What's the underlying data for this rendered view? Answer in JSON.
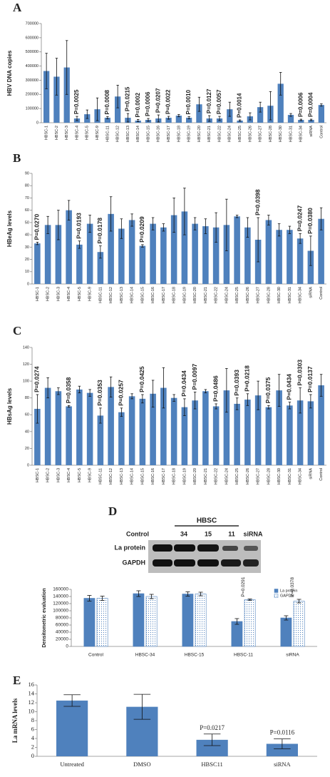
{
  "chart_data": [
    {
      "type": "bar",
      "panel": "A",
      "ylabel": "HBV DNA copies",
      "color": "#4f81bd",
      "grid": false,
      "categories": [
        "HBSC-1",
        "HBSC-2",
        "HBSC-3",
        "HBSC-4",
        "HBSC-5",
        "HBSC-9",
        "HBSC-11",
        "HBSC-12",
        "HBSC-13",
        "HBSC-14",
        "HBSC-15",
        "HBSC-16",
        "HBSC-17",
        "HBSC-18",
        "HBSC-19",
        "HBSC-20",
        "HBSC-21",
        "HBSC-22",
        "HBSC-24",
        "HBSC-25",
        "HBSC-26",
        "HBSC-27",
        "HBSC-28",
        "HBSC-30",
        "HBSC-31",
        "HBSC-34",
        "siRNA",
        "Control"
      ],
      "values": [
        365000,
        325000,
        390000,
        30000,
        60000,
        95000,
        35000,
        185000,
        35000,
        15000,
        20000,
        30000,
        35000,
        50000,
        35000,
        130000,
        30000,
        30000,
        95000,
        15000,
        45000,
        110000,
        120000,
        275000,
        55000,
        20000,
        20000,
        125000
      ],
      "errors": [
        125000,
        130000,
        190000,
        15000,
        30000,
        80000,
        8000,
        80000,
        30000,
        8000,
        10000,
        25000,
        10000,
        8000,
        8000,
        50000,
        20000,
        15000,
        50000,
        5000,
        25000,
        35000,
        100000,
        80000,
        10000,
        5000,
        5000,
        8000
      ],
      "annotations": [
        null,
        null,
        null,
        "P=0.0025",
        null,
        null,
        "P=0.0008",
        null,
        "P=0.0215",
        "P=0.0002",
        "P=0.0006",
        "P=0.0207",
        "P=0.0022",
        null,
        "P=0.0010",
        null,
        "P=0.0127",
        "P=0.0057",
        null,
        "P=0.0014",
        null,
        null,
        null,
        null,
        null,
        "P=0.0006",
        "P=0.0004",
        null
      ],
      "ylim": [
        0,
        700000
      ],
      "yticks": [
        0,
        100000,
        200000,
        300000,
        400000,
        500000,
        600000,
        700000
      ]
    },
    {
      "type": "bar",
      "panel": "B",
      "ylabel": "HBeAg levels",
      "color": "#4f81bd",
      "grid": false,
      "categories": [
        "HBSC-1",
        "HBSC-2",
        "HBSC-3",
        "HBSC-4",
        "HBSC-5",
        "HBSC-9",
        "HBSC-11",
        "HBSC-12",
        "HBSC-13",
        "HBSC-14",
        "HBSC-15",
        "HBSC-16",
        "HBSC-17",
        "HBSC-18",
        "HBSC-19",
        "HBSC-20",
        "HBSC-21",
        "HBSC-22",
        "HBSC-24",
        "HBSC-25",
        "HBSC-26",
        "HBSC-27",
        "HBSC-28",
        "HBSC-30",
        "HBSC-31",
        "HBSC-34",
        "siRNA",
        "Control"
      ],
      "values": [
        33,
        48,
        48,
        60,
        32,
        49,
        26,
        57,
        45,
        52,
        31,
        49,
        46,
        56,
        59,
        49,
        47,
        46,
        48,
        55,
        46,
        36,
        52,
        44,
        44,
        37,
        27,
        53
      ],
      "errors": [
        1,
        7,
        12,
        8,
        3,
        7,
        5,
        14,
        8,
        5,
        1,
        5,
        3,
        14,
        19,
        5,
        6,
        12,
        21,
        1,
        8,
        18,
        4,
        5,
        3,
        4,
        12,
        9
      ],
      "annotations": [
        "P=0.0270",
        null,
        null,
        null,
        "P=0.0193",
        null,
        "P=0.0178",
        null,
        null,
        null,
        "P=0.0209",
        null,
        null,
        null,
        null,
        null,
        null,
        null,
        null,
        null,
        null,
        "P=0.0398",
        null,
        null,
        null,
        "P=0.0247",
        "P=0.0380",
        null
      ],
      "ylim": [
        0,
        90
      ],
      "yticks": [
        0,
        10,
        20,
        30,
        40,
        50,
        60,
        70,
        80,
        90
      ]
    },
    {
      "type": "bar",
      "panel": "C",
      "ylabel": "HBsAg levels",
      "color": "#4f81bd",
      "grid": false,
      "categories": [
        "HBSC-1",
        "HBSC-2",
        "HBSC-3",
        "HBSC-4",
        "HBSC-5",
        "HBSC-9",
        "HBSC-11",
        "HBSC-12",
        "HBSC-13",
        "HBSC-14",
        "HBSC-15",
        "HBSC-16",
        "HBSC-17",
        "HBSC-18",
        "HBSC-19",
        "HBSC-20",
        "HBSC-21",
        "HBSC-22",
        "HBSC-24",
        "HBSC-25",
        "HBSC-26",
        "HBSC-27",
        "HBSC-28",
        "HBSC-30",
        "HBSC-31",
        "HBSC-34",
        "siRNA",
        "Control"
      ],
      "values": [
        67,
        92,
        88,
        70,
        90,
        86,
        59,
        93,
        63,
        82,
        79,
        85,
        92,
        80,
        69,
        77,
        88,
        70,
        89,
        73,
        78,
        83,
        69,
        89,
        71,
        77,
        76,
        95
      ],
      "errors": [
        17,
        12,
        4,
        1,
        4,
        4,
        9,
        12,
        5,
        3,
        5,
        16,
        24,
        4,
        10,
        10,
        2,
        3,
        26,
        7,
        7,
        17,
        2,
        19,
        4,
        15,
        8,
        13
      ],
      "annotations": [
        "P=0.0274",
        null,
        null,
        "P=0.0358",
        null,
        null,
        "P=0.0353",
        null,
        "P=0.0257",
        null,
        "P=0.0425",
        null,
        null,
        null,
        "P=0.0434",
        "P=0.0097",
        null,
        "P=0.0486",
        null,
        "P=0.0393",
        "P=0.0218",
        null,
        "P=0.0375",
        null,
        "P=0.0434",
        "P=0.0303",
        "P=0.0137",
        null
      ],
      "ylim": [
        0,
        140
      ],
      "yticks": [
        0,
        20,
        40,
        60,
        80,
        100,
        120,
        140
      ]
    },
    {
      "type": "grouped_bar",
      "ylabel": "Densitometric evaluation",
      "grid": false,
      "legend": "top-right",
      "categories": [
        "Control",
        "HBSC-34",
        "HBSC-15",
        "HBSC-11",
        "siRNA"
      ],
      "series": [
        {
          "name": "La protein",
          "color": "#4f81bd",
          "pattern": "solid",
          "values": [
            135000,
            148000,
            147000,
            70000,
            80000
          ],
          "errors": [
            8000,
            8000,
            6000,
            8000,
            6000
          ]
        },
        {
          "name": "GAPDH",
          "color": "#4f81bd",
          "pattern": "dots",
          "values": [
            135000,
            140000,
            147000,
            131000,
            127000
          ],
          "errors": [
            6000,
            6000,
            5000,
            2000,
            5000
          ]
        }
      ],
      "annotations": [
        null,
        null,
        null,
        "P=0.0291",
        "P=0.0378"
      ],
      "ylim": [
        0,
        160000
      ],
      "yticks": [
        0,
        20000,
        40000,
        60000,
        80000,
        100000,
        120000,
        140000,
        160000
      ]
    },
    {
      "type": "bar",
      "panel": "E",
      "ylabel": "La mRNA levels",
      "color": "#4f81bd",
      "grid": false,
      "categories": [
        "Untreated",
        "DMSO",
        "HBSC11",
        "siRNA"
      ],
      "values": [
        12.5,
        11.1,
        3.7,
        2.8
      ],
      "errors": [
        1.3,
        2.8,
        1.3,
        1.1
      ],
      "annotations": [
        null,
        null,
        "P=0.0217",
        "P=0.0116"
      ],
      "ylim": [
        0,
        16
      ],
      "yticks": [
        0,
        2,
        4,
        6,
        8,
        10,
        12,
        14,
        16
      ]
    }
  ],
  "blot": {
    "panel": "D",
    "group": "HBSC",
    "lanes": [
      "Control",
      "34",
      "15",
      "11",
      "siRNA"
    ],
    "rows": [
      "La protein",
      "GAPDH"
    ]
  }
}
